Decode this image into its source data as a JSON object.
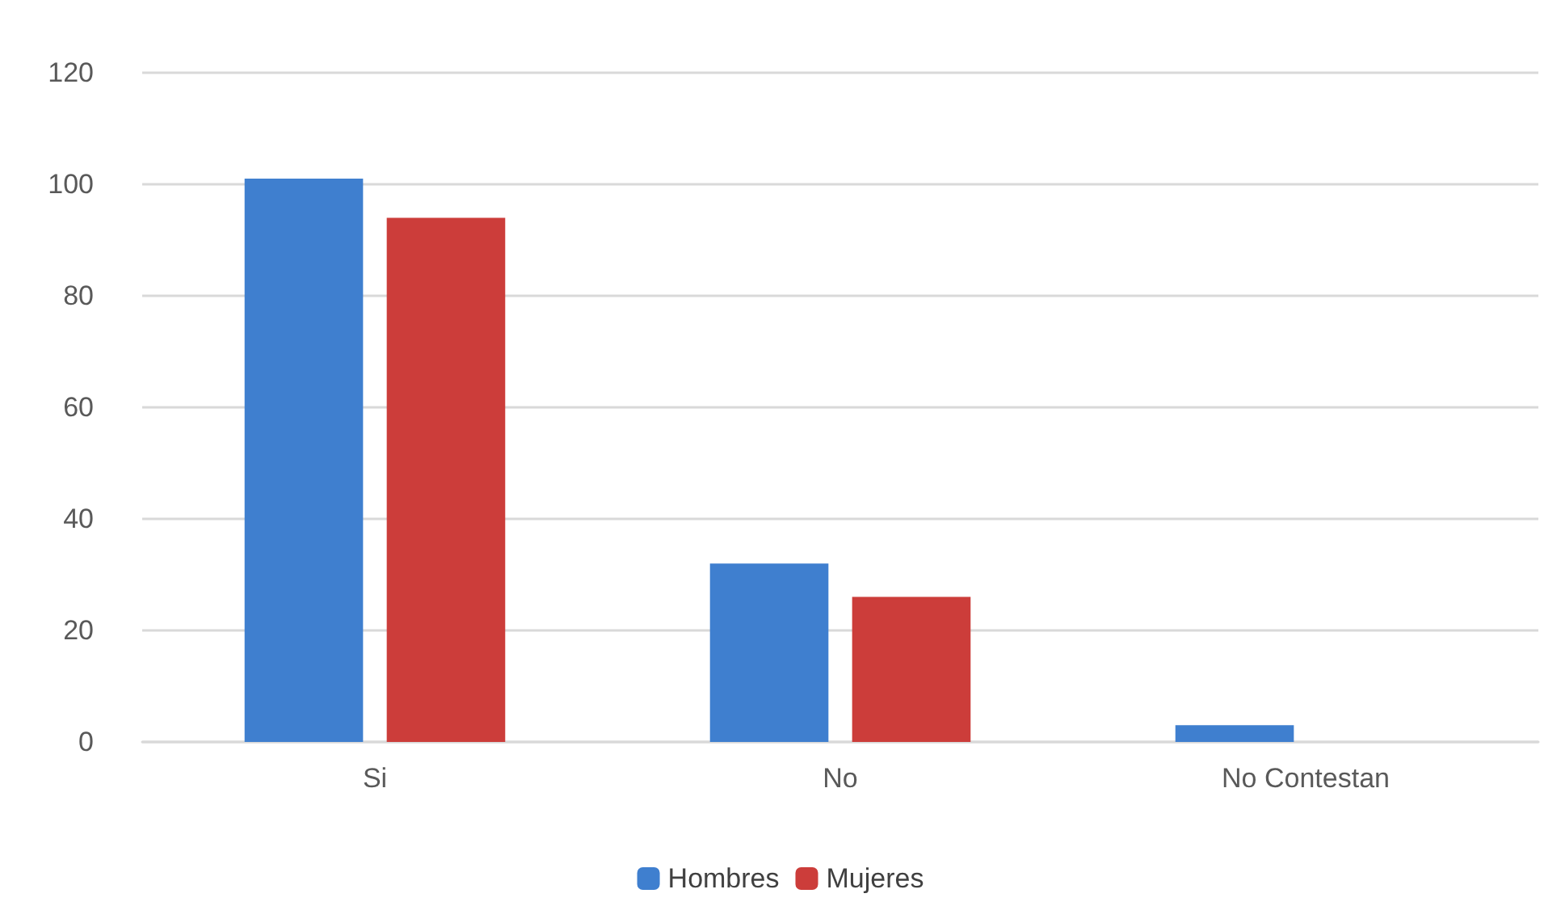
{
  "chart_data": {
    "type": "bar",
    "categories": [
      "Si",
      "No",
      "No Contestan"
    ],
    "series": [
      {
        "name": "Hombres",
        "color": "#3f7fcf",
        "values": [
          101,
          32,
          3
        ]
      },
      {
        "name": "Mujeres",
        "color": "#cc3d3a",
        "values": [
          94,
          26,
          0
        ]
      }
    ],
    "ylim": [
      0,
      120
    ],
    "yticks": [
      0,
      20,
      40,
      60,
      80,
      100,
      120
    ],
    "grid": "y",
    "legend": "bottom"
  }
}
